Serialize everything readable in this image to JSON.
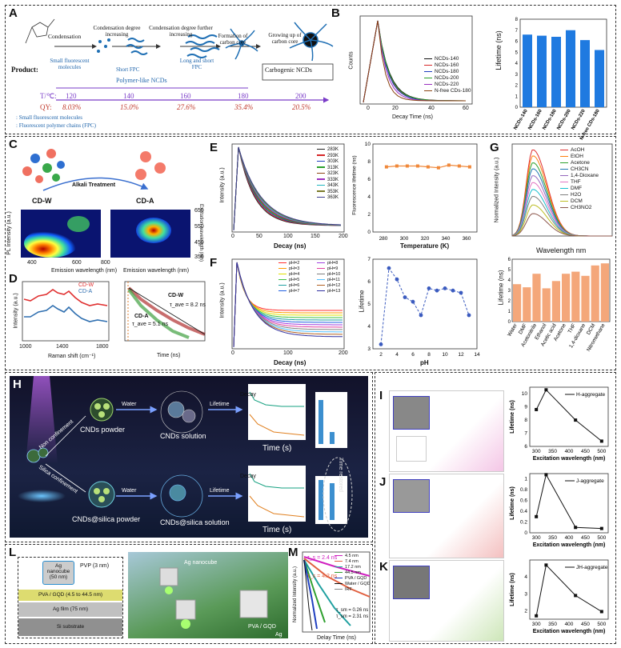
{
  "panels": {
    "A": "A",
    "B": "B",
    "C": "C",
    "D": "D",
    "E": "E",
    "F": "F",
    "G": "G",
    "H": "H",
    "I": "I",
    "J": "J",
    "K": "K",
    "L": "L",
    "M": "M"
  },
  "panelA": {
    "steps": [
      "Condensation",
      "Condensation degree increasing",
      "Condensation degree further increasing",
      "Formation of carbon core",
      "Growing up of carbon core"
    ],
    "products": [
      "Small fluorescent molecules",
      "Short FPC",
      "Long and short FPC",
      "Carbogenic NCDs"
    ],
    "product_label": "Product:",
    "polymer_label": "Polymer-like NCDs",
    "t_label": "T/℃:",
    "qy_label": "QY:",
    "temps": [
      "120",
      "140",
      "160",
      "180",
      "200"
    ],
    "qys": [
      "8.03%",
      "15.0%",
      "27.6%",
      "35.4%",
      "20.5%"
    ],
    "legend1": ": Small fluorescent molecules",
    "legend2": ": Fluorescent polymer chains (FPC)"
  },
  "panelB": {
    "decay_legend": [
      "NCDs-140",
      "NCDs-160",
      "NCDs-180",
      "NCDs-200",
      "NCDs-220",
      "N-free CDs-180"
    ],
    "decay_colors": [
      "#111111",
      "#d62728",
      "#1f3fbf",
      "#2ca02c",
      "#9b30c0",
      "#8b4513"
    ],
    "xlabel": "Decay Time (ns)",
    "ylabel": "Counts",
    "xticks": [
      "0",
      "20",
      "40",
      "60"
    ],
    "bar_ylabel": "Lifetime (ns)"
  },
  "chart_data": [
    {
      "type": "bar",
      "categories": [
        "NCDs-140",
        "NCDs-160",
        "NCDs-180",
        "NCDs-200",
        "NCDs-220",
        "N-free CDs-180"
      ],
      "values": [
        6.6,
        6.5,
        6.4,
        7.0,
        6.1,
        5.2
      ],
      "ylabel": "Lifetime (ns)",
      "ylim": [
        0,
        8
      ],
      "yticks": [
        0,
        1,
        2,
        3,
        4,
        5,
        6,
        7,
        8
      ],
      "color": "#1f7ae0"
    },
    {
      "type": "line",
      "x": [
        283,
        293,
        303,
        313,
        323,
        333,
        343,
        353,
        363
      ],
      "values": [
        7.4,
        7.5,
        7.5,
        7.5,
        7.4,
        7.3,
        7.6,
        7.5,
        7.4
      ],
      "xlabel": "Temperature (K)",
      "ylabel": "Fluorescence lifetime (ns)",
      "xlim": [
        270,
        370
      ],
      "ylim": [
        0,
        10
      ],
      "xticks": [
        280,
        300,
        320,
        340,
        360
      ],
      "yticks": [
        0,
        2,
        4,
        6,
        8,
        10
      ],
      "color": "#f0883a"
    },
    {
      "type": "line",
      "x": [
        2,
        3,
        4,
        5,
        6,
        7,
        8,
        9,
        10,
        11,
        12,
        13
      ],
      "values": [
        3.2,
        6.6,
        6.1,
        5.3,
        5.1,
        4.5,
        5.7,
        5.6,
        5.7,
        5.6,
        5.5,
        4.5
      ],
      "xlabel": "pH",
      "ylabel": "Lifetime",
      "xlim": [
        1,
        14
      ],
      "ylim": [
        3,
        7
      ],
      "xticks": [
        2,
        4,
        6,
        8,
        10,
        12,
        14
      ],
      "yticks": [
        3,
        4,
        5,
        6,
        7
      ],
      "color": "#3b5bbf"
    },
    {
      "type": "line",
      "series": [
        {
          "name": "AcOH",
          "peak": 1.0
        },
        {
          "name": "EtOH",
          "peak": 0.93
        },
        {
          "name": "Acetone",
          "peak": 0.85
        },
        {
          "name": "CH3CN",
          "peak": 0.78
        },
        {
          "name": "1,4-Dioxane",
          "peak": 0.7
        },
        {
          "name": "THF",
          "peak": 0.62
        },
        {
          "name": "DMF",
          "peak": 0.54
        },
        {
          "name": "H2O",
          "peak": 0.46
        },
        {
          "name": "DCM",
          "peak": 0.36
        },
        {
          "name": "CH3NO2",
          "peak": 0.26
        }
      ],
      "xlabel": "Wavelength nm",
      "ylabel": "Normalized Intensity (a.u.)",
      "xlim": [
        400,
        700
      ],
      "xticks": [
        400,
        500,
        600,
        700
      ]
    },
    {
      "type": "bar",
      "categories": [
        "Water",
        "DMF",
        "Acetonitrile",
        "Ethanol",
        "Acetic acid",
        "Acetone",
        "THF",
        "1,4-dioxane",
        "DCM",
        "Nitromethane"
      ],
      "values": [
        3.6,
        3.3,
        4.6,
        3.2,
        3.9,
        4.6,
        4.8,
        4.4,
        5.4,
        5.6
      ],
      "ylabel": "Lifetime (ns)",
      "ylim": [
        0,
        6
      ],
      "yticks": [
        0,
        1,
        2,
        3,
        4,
        5,
        6
      ],
      "color": "#f4a77a"
    },
    {
      "type": "line",
      "x": [
        300,
        330,
        420,
        500
      ],
      "values": [
        8.8,
        10.3,
        8.0,
        6.4
      ],
      "xlabel": "Excitation wavelength (nm)",
      "ylabel": "Lifetime (ns)",
      "legend": "H-aggregate",
      "ylim": [
        6,
        10.5
      ],
      "yticks": [
        6,
        7,
        8,
        9,
        10
      ],
      "xticks": [
        300,
        350,
        400,
        450,
        500
      ]
    },
    {
      "type": "line",
      "x": [
        300,
        330,
        420,
        500
      ],
      "values": [
        0.3,
        1.08,
        0.1,
        0.08
      ],
      "xlabel": "Excitation wavelength (nm)",
      "ylabel": "Lifetime (ns)",
      "legend": "J-aggregate",
      "ylim": [
        0,
        1.1
      ],
      "yticks": [
        0.0,
        0.2,
        0.4,
        0.6,
        0.8,
        1.0
      ],
      "xticks": [
        300,
        350,
        400,
        450,
        500
      ]
    },
    {
      "type": "line",
      "x": [
        300,
        330,
        420,
        500
      ],
      "values": [
        1.7,
        4.7,
        2.9,
        1.95
      ],
      "xlabel": "Excitation wavelength (nm)",
      "ylabel": "Lifetime (ns)",
      "legend": "JH-aggregate",
      "ylim": [
        1.5,
        5
      ],
      "yticks": [
        2,
        3,
        4
      ],
      "xticks": [
        300,
        350,
        400,
        450,
        500
      ]
    }
  ],
  "panelC": {
    "cdw": "CD-W",
    "cda": "CD-A",
    "arrow": "Alkali Treatment",
    "xlabel": "Emission wavelength (nm)",
    "ylabel": "PL Intensity (a.u.)",
    "right_ylabel": "Excitation wavelength (nm)",
    "xticks": [
      "400",
      "500",
      "600",
      "700",
      "800"
    ],
    "yticks": [
      "650",
      "600",
      "550",
      "500",
      "450",
      "400",
      "350"
    ]
  },
  "panelD": {
    "legend": [
      "CD-W",
      "CD-A"
    ],
    "xlabel": "Raman shift (cm⁻¹)",
    "ylabel": "Intensity (a.u.)",
    "xticks": [
      "1000",
      "1200",
      "1400",
      "1600",
      "1800"
    ],
    "decay_xlabel": "Time (ns)",
    "cdw_tau": "τ_ave = 8.2 ns",
    "cda_tau": "τ_ave = 5.1 ns"
  },
  "panelE": {
    "legend": [
      "283K",
      "293K",
      "303K",
      "313K",
      "323K",
      "333K",
      "343K",
      "353K",
      "363K"
    ],
    "xlabel": "Decay (ns)",
    "ylabel": "Intensity (a.u.)",
    "xticks": [
      "0",
      "50",
      "100",
      "150",
      "200"
    ]
  },
  "panelF": {
    "legend": [
      "pH=2",
      "pH=3",
      "pH=4",
      "pH=5",
      "pH=6",
      "pH=7",
      "pH=8",
      "pH=9",
      "pH=10",
      "pH=11",
      "pH=12",
      "pH=13"
    ],
    "xlabel": "Decay (ns)",
    "ylabel": "Intensity (a.u.)"
  },
  "panelH": {
    "powder1": "CNDs powder",
    "solution1": "CNDs solution",
    "powder2": "CNDs@silica powder",
    "solution2": "CNDs@silica solution",
    "water": "Water",
    "lifetime": "Lifetime",
    "non_conf": "Non confinement",
    "silica_conf": "Silica confinement",
    "xlabel": "Time (s)",
    "ylabel": "Decay",
    "time_restored": "Time restored"
  },
  "panelL": {
    "nanocube": "Ag nanocube (50 nm)",
    "pvp": "PVP (3 nm)",
    "pva": "PVA / GQD (4.5 to 44.5 nm)",
    "film": "Ag film (75 nm)",
    "si": "Si substrate",
    "nanocube_label": "Ag nanocube",
    "pva_right": "PVA / GQD",
    "ag": "Ag"
  },
  "panelM": {
    "legend": [
      "4.5 nm",
      "7.4 nm",
      "17.2 nm",
      "44.5 nm",
      "PVA / GQD",
      "Water / GQD",
      "IRF"
    ],
    "tau1": "τ_s = 2.4 ns",
    "tau2": "τ_s = 4.2 ns",
    "tau3": "τ_sm = 0.26 ns",
    "tau4": "τ_sm = 2.31 ns",
    "xlabel": "Delay Time (ns)",
    "ylabel": "Normalized Intensity (a.u.)"
  }
}
